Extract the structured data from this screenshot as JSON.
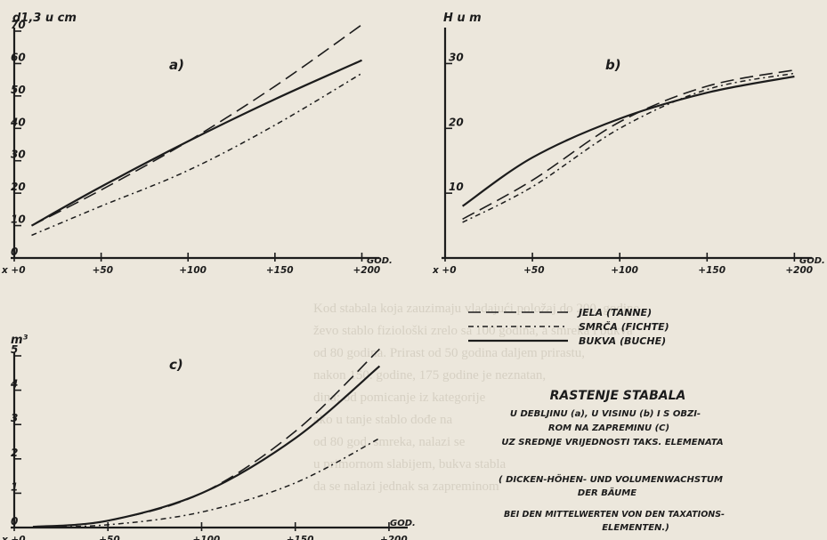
{
  "chart_data": [
    {
      "type": "line",
      "panel_label": "a)",
      "ylabel": "d1,3 u cm",
      "xlabel": "GOD.",
      "xlim": [
        0,
        210
      ],
      "ylim": [
        0,
        70
      ],
      "x_ticks": [
        "x +0",
        "+50",
        "+100",
        "+150",
        "+200"
      ],
      "y_ticks": [
        "0",
        "10",
        "20",
        "30",
        "40",
        "50",
        "60",
        "70"
      ],
      "series": [
        {
          "name": "JELA (TANNE)",
          "style": "long-dash",
          "x": [
            10,
            50,
            100,
            150,
            200
          ],
          "y": [
            10,
            21,
            36,
            53,
            72
          ]
        },
        {
          "name": "SMRČA (FICHTE)",
          "style": "dot-dash",
          "x": [
            10,
            50,
            100,
            150,
            200
          ],
          "y": [
            7,
            16,
            27,
            41,
            57
          ]
        },
        {
          "name": "BUKVA (BUCHE)",
          "style": "solid",
          "x": [
            10,
            50,
            100,
            150,
            200
          ],
          "y": [
            10,
            22,
            36,
            49,
            61
          ]
        }
      ]
    },
    {
      "type": "line",
      "panel_label": "b)",
      "ylabel": "H u m",
      "xlabel": "GOD.",
      "xlim": [
        0,
        210
      ],
      "ylim": [
        0,
        35
      ],
      "x_ticks": [
        "x +0",
        "+50",
        "+100",
        "+150",
        "+200"
      ],
      "y_ticks": [
        "10",
        "20",
        "30"
      ],
      "series": [
        {
          "name": "JELA (TANNE)",
          "style": "long-dash",
          "x": [
            10,
            50,
            100,
            150,
            200
          ],
          "y": [
            6,
            12,
            21,
            26.5,
            29
          ]
        },
        {
          "name": "SMRČA (FICHTE)",
          "style": "dot-dash",
          "x": [
            10,
            50,
            100,
            150,
            200
          ],
          "y": [
            5.5,
            11,
            20,
            26,
            28.5
          ]
        },
        {
          "name": "BUKVA (BUCHE)",
          "style": "solid",
          "x": [
            10,
            50,
            100,
            150,
            200
          ],
          "y": [
            8,
            15.5,
            21.5,
            25.5,
            28
          ]
        }
      ]
    },
    {
      "type": "line",
      "panel_label": "c)",
      "ylabel": "m³",
      "xlabel": "GOD.",
      "xlim": [
        0,
        210
      ],
      "ylim": [
        0,
        5
      ],
      "x_ticks": [
        "x +0",
        "+50",
        "+100",
        "+150",
        "+200"
      ],
      "y_ticks": [
        "0",
        "1",
        "2",
        "3",
        "4",
        "5"
      ],
      "series": [
        {
          "name": "JELA (TANNE)",
          "style": "long-dash",
          "x": [
            10,
            50,
            100,
            150,
            195
          ],
          "y": [
            0.02,
            0.2,
            1.0,
            2.8,
            5.2
          ]
        },
        {
          "name": "SMRČA (FICHTE)",
          "style": "dot-dash",
          "x": [
            10,
            50,
            100,
            150,
            195
          ],
          "y": [
            0.01,
            0.08,
            0.45,
            1.3,
            2.6
          ]
        },
        {
          "name": "BUKVA (BUCHE)",
          "style": "solid",
          "x": [
            10,
            50,
            100,
            150,
            195
          ],
          "y": [
            0.02,
            0.2,
            1.0,
            2.6,
            4.7
          ]
        }
      ]
    }
  ],
  "legend": {
    "entries": [
      {
        "label": "JELA (TANNE)",
        "style": "long-dash"
      },
      {
        "label": "SMRČA (FICHTE)",
        "style": "dot-dash"
      },
      {
        "label": "BUKVA (BUCHE)",
        "style": "solid"
      }
    ]
  },
  "caption": {
    "title": "RASTENJE STABALA",
    "line1": "U DEBLJINU (a), U VISINU (b) I S OBZI-",
    "line2": "ROM NA ZAPREMINU (C)",
    "line3": "UZ SREDNJE VRIJEDNOSTI TAKS. ELEMENATA",
    "de1": "( DICKEN-HÖHEN- UND VOLUMENWACHSTUM",
    "de2": "DER BÄUME",
    "de3": "BEI DEN MITTELWERTEN VON DEN TAXATIONS-",
    "de4": "ELEMENTEN.)"
  },
  "background_text": [
    "Kod stabala koja zauzimaju vladajući položaj do 200. godine",
    "ževo stablo fiziološki zrelo sa 100 godina, a smreka i bukva",
    "od 80 godina. Prirast od 50 godina daljem prirastu,",
    "nakon 150. godine, 175 godine je neznatan,",
    "dina; od pomicanje iz kategorije",
    "ako u tanje stablo dođe na",
    "od 80 god. smreka, nalazi se",
    "u primornom slabijem, bukva stabla",
    "da se nalazi jednak sa zapreminom"
  ],
  "colors": {
    "ink": "#1c1c1c",
    "paper": "#ece7dc",
    "show_through": "#d6d0c3"
  }
}
